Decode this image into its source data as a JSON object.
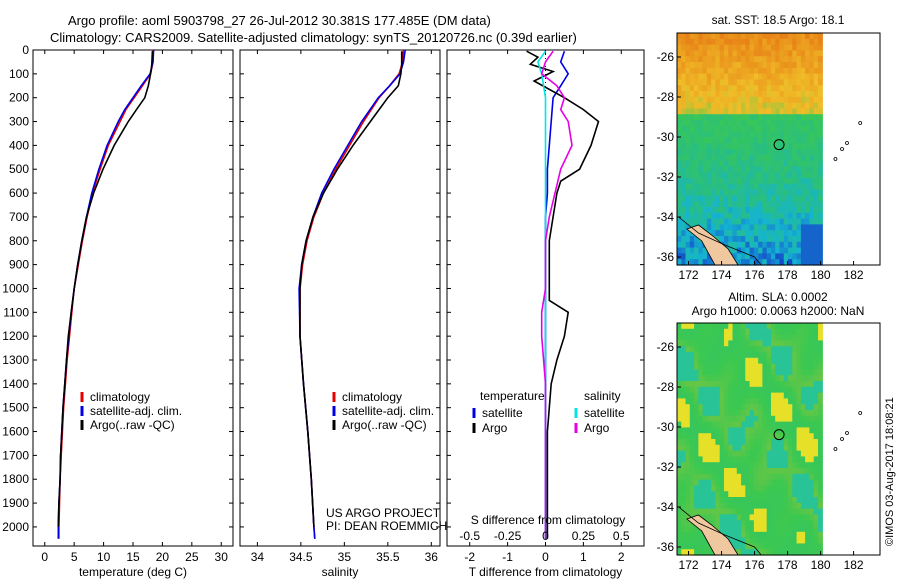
{
  "header": {
    "line1": "Argo profile: aoml 5903798_27 26-Jul-2012 30.381S 177.485E (DM data)",
    "line2": "Climatology: CARS2009. Satellite-adjusted climatology: synTS_20120726.nc (0.39d earlier)"
  },
  "colors": {
    "climatology": "#e60000",
    "satellite": "#0000e6",
    "argo": "#000000",
    "sat_salinity": "#00e6e6",
    "argo_salinity": "#e600e6"
  },
  "chart_data": [
    {
      "type": "line",
      "xlabel": "temperature (deg C)",
      "xlim": [
        -2,
        32
      ],
      "ylim": [
        2080,
        0
      ],
      "xticks": [
        "0",
        "5",
        "10",
        "15",
        "20",
        "25",
        "30"
      ],
      "legend": [
        "climatology",
        "satellite-adj. clim.",
        "Argo(..raw -QC)"
      ],
      "series": [
        {
          "name": "climatology",
          "y": [
            0,
            50,
            100,
            150,
            200,
            250,
            300,
            400,
            500,
            600,
            700,
            800,
            900,
            1000,
            1100,
            1200,
            1300,
            1400,
            1500,
            1600,
            1700,
            1800,
            1900,
            2000,
            2050
          ],
          "values": [
            18.4,
            18.4,
            18.0,
            16.6,
            15.2,
            13.8,
            12.8,
            10.8,
            9.4,
            8.1,
            7.2,
            6.4,
            5.7,
            5.0,
            4.6,
            4.2,
            3.8,
            3.5,
            3.2,
            3.0,
            2.8,
            2.6,
            2.5,
            2.4,
            2.4
          ]
        },
        {
          "name": "satellite-adj. clim.",
          "y": [
            0,
            50,
            100,
            150,
            200,
            250,
            300,
            400,
            500,
            600,
            700,
            800,
            900,
            1000,
            1100,
            1200,
            1300,
            1400,
            1500,
            1600,
            1700,
            1800,
            1900,
            2000,
            2050
          ],
          "values": [
            18.5,
            18.4,
            17.9,
            16.4,
            15.0,
            13.6,
            12.5,
            10.6,
            9.2,
            8.0,
            7.1,
            6.3,
            5.6,
            5.0,
            4.5,
            4.1,
            3.7,
            3.4,
            3.1,
            2.9,
            2.7,
            2.6,
            2.4,
            2.3,
            2.3
          ]
        },
        {
          "name": "Argo(..raw -QC)",
          "y": [
            5,
            60,
            100,
            150,
            200,
            250,
            300,
            400,
            500,
            600,
            700,
            800,
            900,
            1000,
            1100,
            1200,
            1300,
            1400,
            1500,
            1600,
            1700,
            1800,
            1900,
            2000
          ],
          "values": [
            18.3,
            18.2,
            18.0,
            17.6,
            17.0,
            15.6,
            14.2,
            11.8,
            9.9,
            8.3,
            7.1,
            6.3,
            5.6,
            5.0,
            4.5,
            4.0,
            3.7,
            3.4,
            3.1,
            2.9,
            2.7,
            2.6,
            2.4,
            2.3
          ]
        }
      ]
    },
    {
      "type": "line",
      "xlabel": "salinity",
      "xlim": [
        33.8,
        36.1
      ],
      "ylim": [
        2080,
        0
      ],
      "xticks": [
        "34",
        "34.5",
        "35",
        "35.5",
        "36"
      ],
      "legend": [
        "climatology",
        "satellite-adj. clim.",
        "Argo(..raw -QC)"
      ],
      "annotation": [
        "US ARGO PROJECT",
        "PI: DEAN ROEMMICH"
      ],
      "series": [
        {
          "name": "climatology",
          "y": [
            0,
            50,
            100,
            150,
            200,
            300,
            400,
            500,
            600,
            700,
            800,
            900,
            1000,
            1200,
            1400,
            1600,
            1800,
            2000,
            2050
          ],
          "values": [
            35.68,
            35.67,
            35.63,
            35.52,
            35.4,
            35.22,
            35.06,
            34.9,
            34.76,
            34.65,
            34.57,
            34.52,
            34.49,
            34.49,
            34.53,
            34.58,
            34.62,
            34.65,
            34.66
          ]
        },
        {
          "name": "satellite-adj. clim.",
          "y": [
            0,
            50,
            100,
            150,
            200,
            300,
            400,
            500,
            600,
            700,
            800,
            900,
            1000,
            1200,
            1400,
            1600,
            1800,
            2000,
            2050
          ],
          "values": [
            35.7,
            35.68,
            35.64,
            35.52,
            35.39,
            35.2,
            35.04,
            34.88,
            34.74,
            34.64,
            34.56,
            34.51,
            34.48,
            34.49,
            34.53,
            34.58,
            34.62,
            34.65,
            34.66
          ]
        },
        {
          "name": "Argo(..raw -QC)",
          "y": [
            5,
            60,
            100,
            150,
            200,
            300,
            400,
            500,
            600,
            700,
            800,
            900,
            1000,
            1200,
            1400,
            1600,
            1800,
            2000
          ],
          "values": [
            35.66,
            35.66,
            35.65,
            35.62,
            35.5,
            35.3,
            35.1,
            34.92,
            34.76,
            34.64,
            34.56,
            34.51,
            34.49,
            34.49,
            34.53,
            34.58,
            34.62,
            34.65
          ]
        }
      ]
    },
    {
      "type": "line",
      "xlabel": "T difference from climatology",
      "xlabel2": "S difference from climatology",
      "xlim": [
        -2.6,
        2.6
      ],
      "ylim": [
        2080,
        0
      ],
      "xticks": [
        "-2",
        "-1",
        "0",
        "1",
        "2"
      ],
      "xticks_top_labels": [
        "-0.5",
        "-0.25",
        "0",
        "0.25",
        "0.5"
      ],
      "xticks_top_values": [
        -2,
        -1,
        0,
        1,
        2
      ],
      "legend_titles": [
        "temperature",
        "salinity"
      ],
      "legend": [
        "satellite",
        "Argo",
        "satellite",
        "Argo"
      ],
      "series": [
        {
          "name": "satellite",
          "group": "temperature",
          "y": [
            5,
            50,
            100,
            150,
            200,
            300,
            400,
            500,
            600,
            700,
            800,
            1000,
            1200,
            1400,
            1600,
            1800,
            2050
          ],
          "values": [
            0.5,
            0.4,
            0.6,
            0.4,
            0.2,
            0.15,
            0.1,
            0.05,
            0.05,
            0.0,
            0.0,
            0.0,
            0.0,
            0.0,
            0.0,
            0.0,
            0.0
          ]
        },
        {
          "name": "Argo",
          "group": "temperature",
          "y": [
            5,
            30,
            60,
            90,
            130,
            200,
            250,
            300,
            400,
            500,
            550,
            600,
            700,
            800,
            900,
            1000,
            1050,
            1100,
            1200,
            1300,
            1400,
            1500,
            1600,
            1800,
            2000,
            2050
          ],
          "values": [
            -0.5,
            -0.2,
            -0.4,
            0.2,
            -0.3,
            0.5,
            1.0,
            1.4,
            1.2,
            0.9,
            0.4,
            0.3,
            0.2,
            0.1,
            0.1,
            0.1,
            0.1,
            0.6,
            0.5,
            0.3,
            0.15,
            0.1,
            0.05,
            0.05,
            0.05,
            0.05
          ]
        },
        {
          "name": "satellite",
          "group": "salinity",
          "y": [
            5,
            50,
            100,
            150,
            200,
            300,
            400,
            500,
            700,
            900,
            1100,
            1300,
            1500,
            1700,
            1900,
            2050
          ],
          "values": [
            0.0,
            -0.2,
            -0.1,
            -0.05,
            0.0,
            0.0,
            0.0,
            0.0,
            0.0,
            0.0,
            0.0,
            0.0,
            0.0,
            0.0,
            0.0,
            0.0
          ]
        },
        {
          "name": "Argo",
          "group": "salinity",
          "y": [
            5,
            50,
            100,
            150,
            200,
            250,
            300,
            400,
            500,
            600,
            700,
            800,
            1000,
            1100,
            1200,
            1300,
            1400,
            1500,
            1600,
            1800,
            2050
          ],
          "values": [
            0.2,
            0.0,
            -0.1,
            0.3,
            0.5,
            0.4,
            0.6,
            0.7,
            0.4,
            0.25,
            0.1,
            0.0,
            0.0,
            -0.1,
            -0.1,
            -0.05,
            0.0,
            0.0,
            0.0,
            0.0,
            0.0
          ]
        }
      ]
    },
    {
      "type": "heatmap",
      "title": "sat. SST: 18.5  Argo: 18.1",
      "xlim": [
        171.3,
        183.6
      ],
      "ylim": [
        -36.4,
        -24.8
      ],
      "xticks": [
        "172",
        "174",
        "176",
        "178",
        "180",
        "182"
      ],
      "yticks": [
        "-26",
        "-28",
        "-30",
        "-32",
        "-34",
        "-36"
      ],
      "marker": [
        177.485,
        -30.381
      ]
    },
    {
      "type": "heatmap",
      "title": "Altim. SLA: 0.0002",
      "subtitle": "Argo h1000: 0.0063 h2000: NaN",
      "xlim": [
        171.3,
        183.6
      ],
      "ylim": [
        -36.4,
        -24.8
      ],
      "xticks": [
        "172",
        "174",
        "176",
        "178",
        "180",
        "182"
      ],
      "yticks": [
        "-26",
        "-28",
        "-30",
        "-32",
        "-34",
        "-36"
      ],
      "marker": [
        177.485,
        -30.381
      ]
    }
  ],
  "y_axis": {
    "label_values": [
      "0",
      "100",
      "200",
      "300",
      "400",
      "500",
      "600",
      "700",
      "800",
      "900",
      "1000",
      "1100",
      "1200",
      "1300",
      "1400",
      "1500",
      "1600",
      "1700",
      "1800",
      "1900",
      "2000"
    ]
  },
  "footer": {
    "credit": "©IMOS 03-Aug-2017 18:08:21"
  }
}
